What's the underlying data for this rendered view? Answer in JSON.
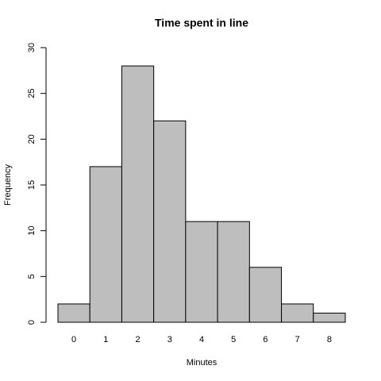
{
  "chart_data": {
    "type": "histogram",
    "title": "Time spent in line",
    "x_label": "Minutes",
    "y_label": "Frequency",
    "bins": [
      -0.5,
      0.5,
      1.5,
      2.5,
      3.5,
      4.5,
      5.5,
      6.5,
      7.5,
      8.5
    ],
    "values": [
      2,
      17,
      28,
      22,
      11,
      11,
      6,
      2,
      1
    ],
    "color": "#bebebe",
    "xlim": [
      -0.5,
      8.5
    ],
    "xticks": [
      0,
      1,
      2,
      3,
      4,
      5,
      6,
      7,
      8
    ],
    "ylim": [
      0,
      30
    ],
    "yticks": [
      0,
      5,
      10,
      15,
      20,
      25,
      30
    ]
  }
}
